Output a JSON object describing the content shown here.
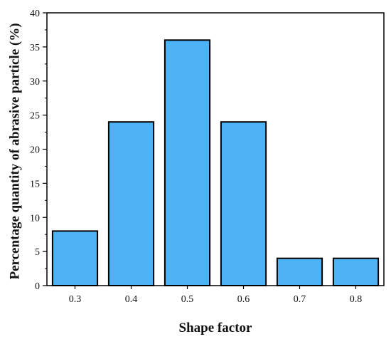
{
  "chart_data": {
    "type": "bar",
    "categories": [
      "0.3",
      "0.4",
      "0.5",
      "0.6",
      "0.7",
      "0.8"
    ],
    "values": [
      8,
      24,
      36,
      24,
      4,
      4
    ],
    "xlabel": "Shape factor",
    "ylabel": "Percentage quantity of abrasive particle (%)",
    "ylim": [
      0,
      40
    ],
    "yticks": [
      "0",
      "5",
      "10",
      "15",
      "20",
      "25",
      "30",
      "35",
      "40"
    ],
    "grid": false,
    "legend": "none",
    "bar_color": "#4db3f5",
    "bar_edge_color": "#000000"
  }
}
